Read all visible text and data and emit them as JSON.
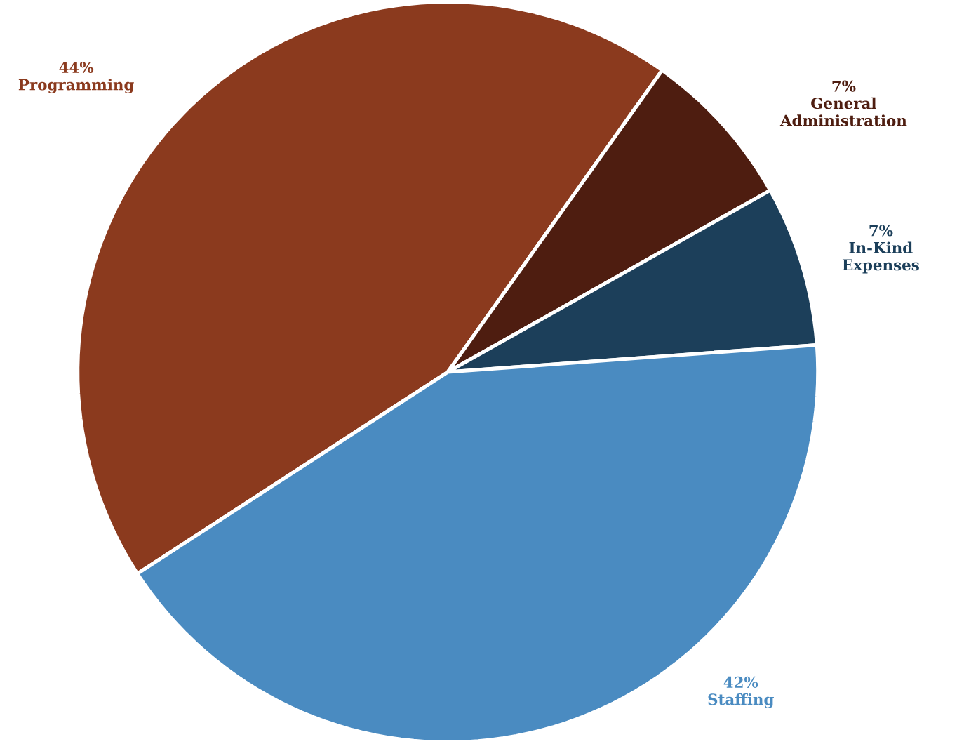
{
  "chart_data": {
    "type": "pie",
    "categories": [
      "Programming",
      "General Administration",
      "In-Kind Expenses",
      "Staffing"
    ],
    "values": [
      44,
      7,
      7,
      42
    ],
    "colors": [
      "#8b3a1e",
      "#4e1d10",
      "#1c3f5a",
      "#4a8bc1"
    ],
    "value_labels": [
      "44%",
      "7%",
      "7%",
      "42%"
    ]
  }
}
